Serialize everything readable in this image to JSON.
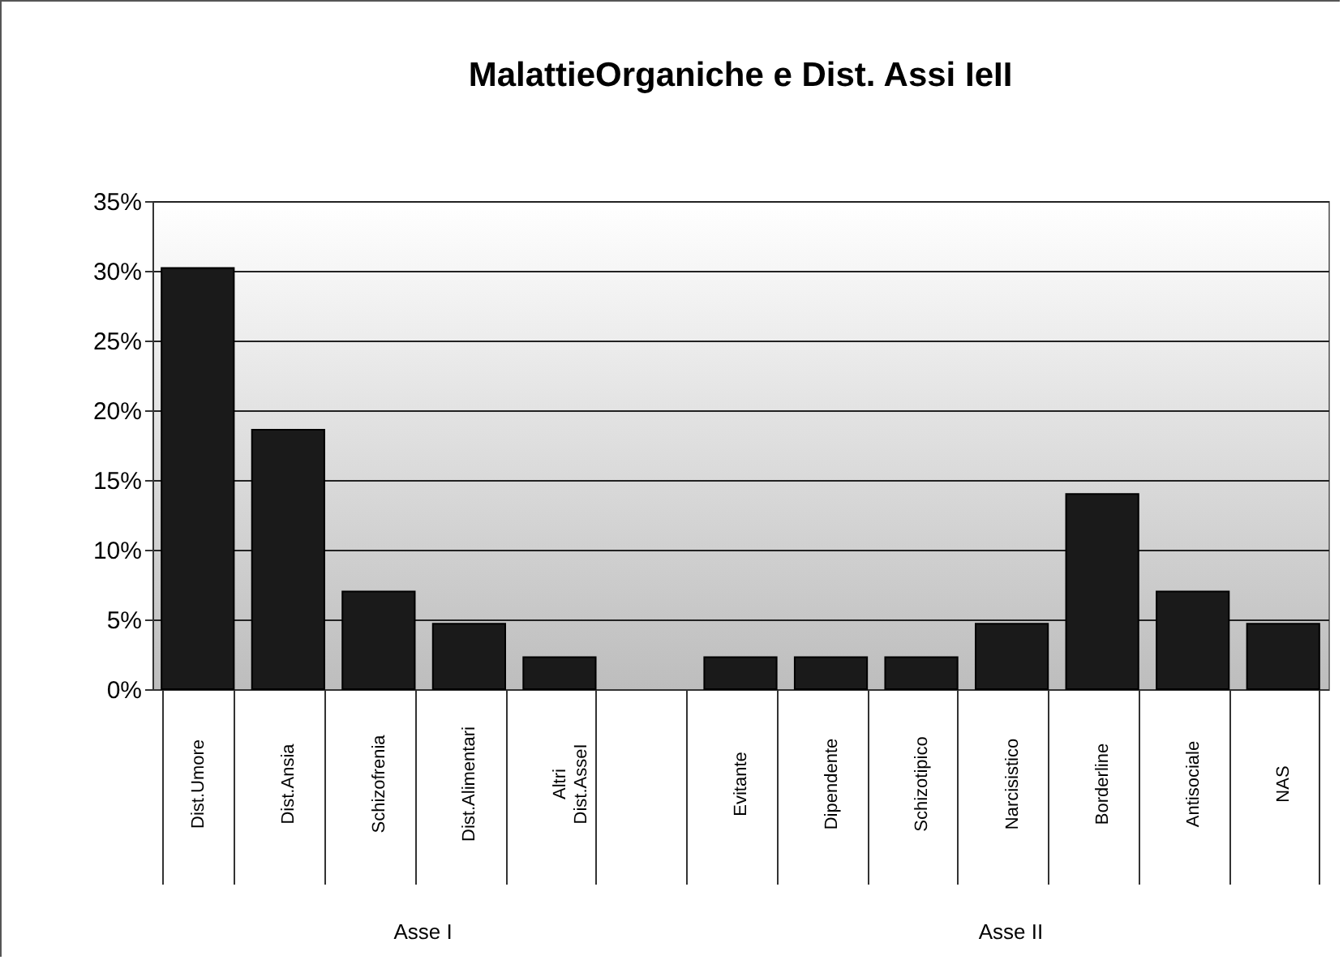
{
  "chart_data": {
    "type": "bar",
    "title": "MalattieOrganiche e Dist. Assi IeII",
    "categories": [
      "Dist.Umore",
      "Dist.Ansia",
      "Schizofrenia",
      "Dist.Alimentari",
      "Altri\nDist.AsseI",
      null,
      "Evitante",
      "Dipendente",
      "Schizotipico",
      "Narcisistico",
      "Borderline",
      "Antisociale",
      "NAS"
    ],
    "values": [
      30.2,
      18.6,
      7.0,
      4.7,
      2.3,
      null,
      2.3,
      2.3,
      2.3,
      4.7,
      14.0,
      7.0,
      4.7
    ],
    "color": "#1a1a1a",
    "ylim": [
      0,
      35
    ],
    "yticks": [
      {
        "value": 0,
        "label": "0%"
      },
      {
        "value": 5,
        "label": "5%"
      },
      {
        "value": 10,
        "label": "10%"
      },
      {
        "value": 15,
        "label": "15%"
      },
      {
        "value": 20,
        "label": "20%"
      },
      {
        "value": 25,
        "label": "25%"
      },
      {
        "value": 30,
        "label": "30%"
      },
      {
        "value": 35,
        "label": "35%"
      }
    ],
    "grid": "y",
    "annotations": [
      "Asse I",
      "Asse II"
    ]
  }
}
